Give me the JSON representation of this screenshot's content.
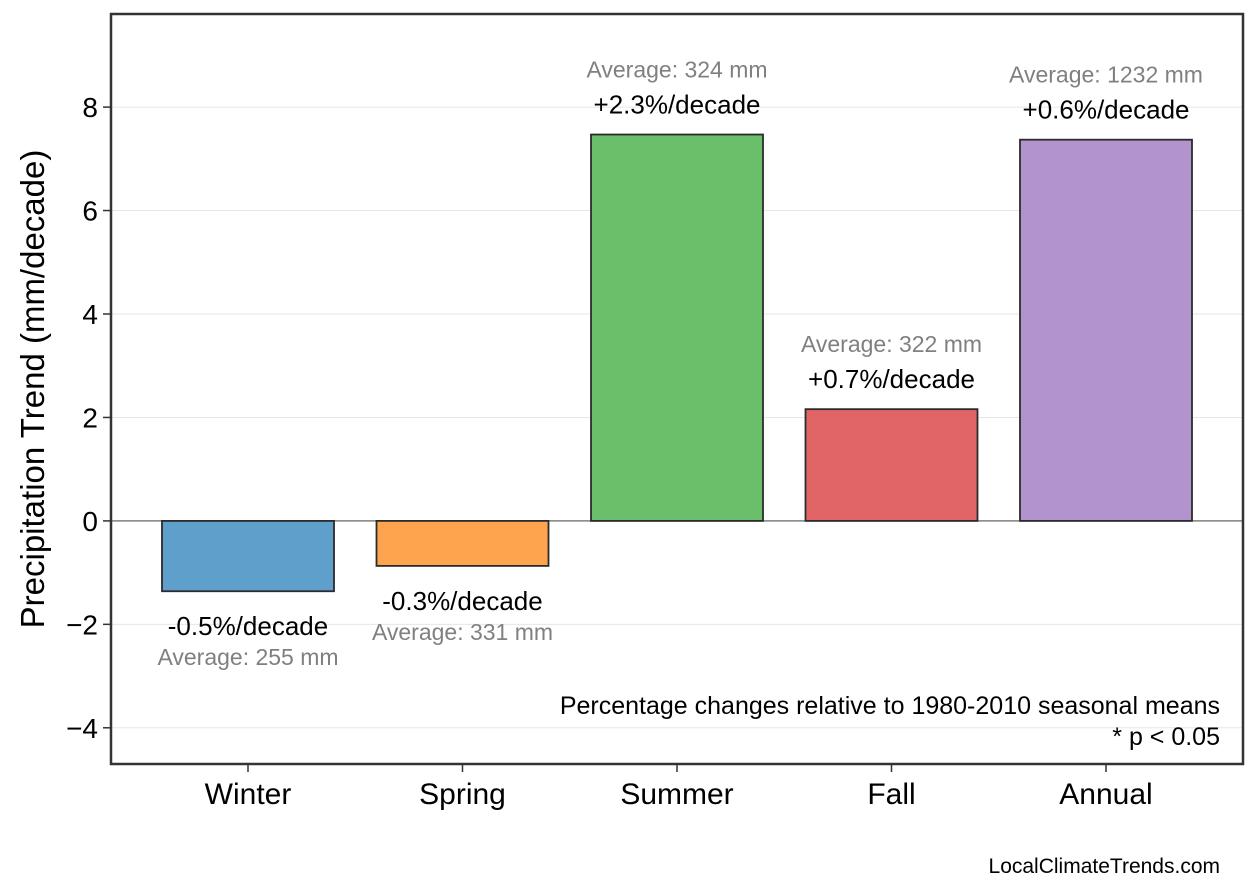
{
  "chart_data": {
    "type": "bar",
    "ylabel": "Precipitation Trend (mm/decade)",
    "xlabel": "",
    "title": "",
    "ylim": [
      -4.7,
      9.8
    ],
    "yticks": [
      -4,
      -2,
      0,
      2,
      4,
      6,
      8
    ],
    "ytick_labels": [
      "−4",
      "−2",
      "0",
      "2",
      "4",
      "6",
      "8"
    ],
    "grid": true,
    "categories": [
      "Winter",
      "Spring",
      "Summer",
      "Fall",
      "Annual"
    ],
    "values": [
      -1.36,
      -0.87,
      7.47,
      2.16,
      7.37
    ],
    "colors": [
      "#5f9fcc",
      "#fea44f",
      "#6bbe6a",
      "#e16566",
      "#b293cd"
    ],
    "pct_labels": [
      "-0.5%/decade",
      "-0.3%/decade",
      "+2.3%/decade",
      "+0.7%/decade",
      "+0.6%/decade"
    ],
    "avg_labels": [
      "Average: 255 mm",
      "Average: 331 mm",
      "Average: 324 mm",
      "Average: 322 mm",
      "Average: 1232 mm"
    ],
    "note_line1": "Percentage changes relative to 1980-2010 seasonal means",
    "note_line2": "* p < 0.05",
    "source": "LocalClimateTrends.com"
  }
}
